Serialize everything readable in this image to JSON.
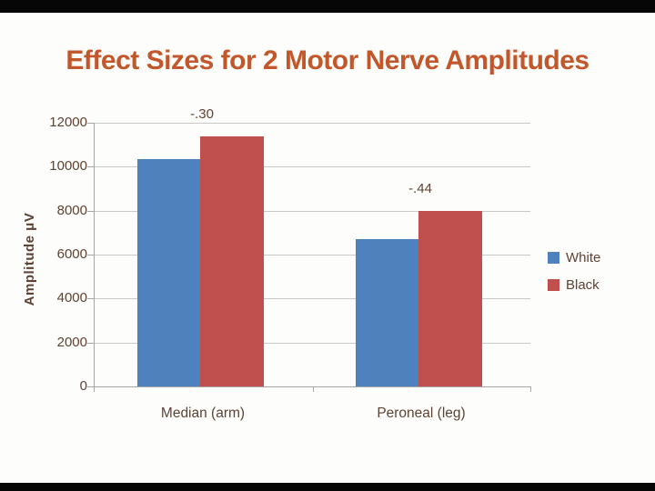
{
  "slide": {
    "title": "Effect Sizes for 2 Motor Nerve Amplitudes"
  },
  "chart_data": {
    "type": "bar",
    "title": "Effect Sizes for 2 Motor Nerve Amplitudes",
    "xlabel": "",
    "ylabel": "Amplitude μV",
    "categories": [
      "Median (arm)",
      "Peroneal (leg)"
    ],
    "series": [
      {
        "name": "White",
        "color": "#4F81BD",
        "values": [
          10350,
          6700
        ]
      },
      {
        "name": "Black",
        "color": "#C0504D",
        "values": [
          11400,
          8000
        ]
      }
    ],
    "annotations": [
      {
        "label": "-.30",
        "category_index": 0
      },
      {
        "label": "-.44",
        "category_index": 1
      }
    ],
    "ylim": [
      0,
      12000
    ],
    "ytick_step": 2000,
    "ytick_labels": [
      "0",
      "2000",
      "4000",
      "6000",
      "8000",
      "10000",
      "12000"
    ],
    "grid": true,
    "legend_position": "right",
    "legend_entries": [
      "White",
      "Black"
    ]
  },
  "colors": {
    "title_text": "#C2572B",
    "chart_text": "#5E4233",
    "gridline": "#C9C9C9",
    "axis": "#A6A6A6",
    "series_white": "#4F81BD",
    "series_black": "#C0504D",
    "letterbox": "#060606",
    "background": "#FDFDFB"
  }
}
